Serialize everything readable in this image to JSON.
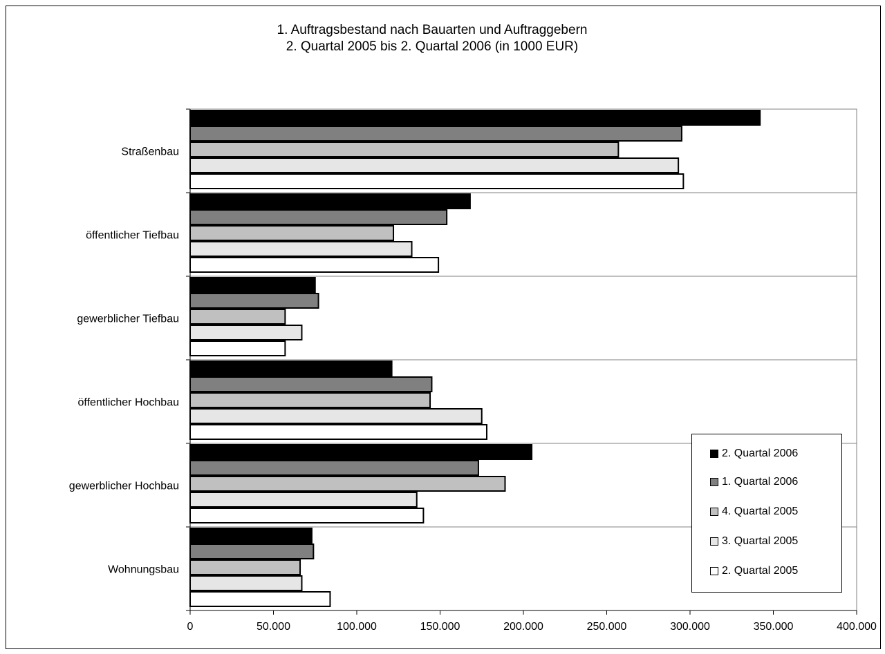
{
  "chart_data": {
    "type": "bar",
    "orientation": "horizontal",
    "title_lines": [
      "1. Auftragsbestand nach Bauarten und Auftraggebern",
      "2. Quartal 2005 bis 2. Quartal 2006 (in 1000 EUR)"
    ],
    "categories": [
      "Straßenbau",
      "öffentlicher Tiefbau",
      "gewerblicher Tiefbau",
      "öffentlicher Hochbau",
      "gewerblicher Hochbau",
      "Wohnungsbau"
    ],
    "series": [
      {
        "name": "2. Quartal 2006",
        "color": "#000000",
        "values": [
          342000,
          168000,
          75000,
          121000,
          205000,
          73000
        ]
      },
      {
        "name": "1. Quartal 2006",
        "color": "#808080",
        "values": [
          295000,
          154000,
          77000,
          145000,
          173000,
          74000
        ]
      },
      {
        "name": "4. Quartal 2005",
        "color": "#c0c0c0",
        "values": [
          257000,
          122000,
          57000,
          144000,
          189000,
          66000
        ]
      },
      {
        "name": "3. Quartal 2005",
        "color": "#e6e6e6",
        "values": [
          293000,
          133000,
          67000,
          175000,
          136000,
          67000
        ]
      },
      {
        "name": "2. Quartal 2005",
        "color": "#ffffff",
        "values": [
          296000,
          149000,
          57000,
          178000,
          140000,
          84000
        ]
      }
    ],
    "xlim": [
      0,
      400000
    ],
    "xticks": [
      0,
      50000,
      100000,
      150000,
      200000,
      250000,
      300000,
      350000,
      400000
    ],
    "xtick_labels": [
      "0",
      "50.000",
      "100.000",
      "150.000",
      "200.000",
      "250.000",
      "300.000",
      "350.000",
      "400.000"
    ],
    "grid": "horizontal separators between categories",
    "legend_position": "bottom-right"
  }
}
